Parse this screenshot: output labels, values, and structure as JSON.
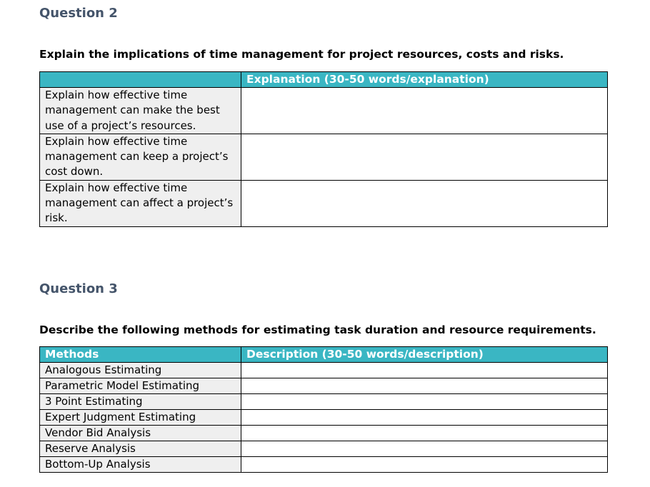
{
  "colors": {
    "accent": "#3ab6c3",
    "heading": "#44546a",
    "cell_gray": "#efefef",
    "border": "#000000",
    "header_text": "#ffffff"
  },
  "question2": {
    "title": "Question 2",
    "instruction": "Explain the implications of time management for project resources, costs and risks.",
    "table": {
      "header": [
        "",
        "Explanation (30-50 words/explanation)"
      ],
      "rows": [
        {
          "prompt": "Explain how effective time management can make the best use of a project’s resources.",
          "answer": ""
        },
        {
          "prompt": "Explain how effective time management can keep a project’s cost down.",
          "answer": ""
        },
        {
          "prompt": "Explain how effective time management can affect a project’s risk.",
          "answer": ""
        }
      ]
    }
  },
  "question3": {
    "title": "Question 3",
    "instruction": "Describe the following methods for estimating task duration and resource requirements.",
    "table": {
      "header": [
        "Methods",
        "Description (30-50 words/description)"
      ],
      "rows": [
        {
          "method": "Analogous Estimating",
          "description": ""
        },
        {
          "method": "Parametric Model Estimating",
          "description": ""
        },
        {
          "method": "3 Point Estimating",
          "description": ""
        },
        {
          "method": "Expert Judgment Estimating",
          "description": ""
        },
        {
          "method": "Vendor Bid Analysis",
          "description": ""
        },
        {
          "method": "Reserve Analysis",
          "description": ""
        },
        {
          "method": "Bottom-Up Analysis",
          "description": ""
        }
      ]
    }
  }
}
